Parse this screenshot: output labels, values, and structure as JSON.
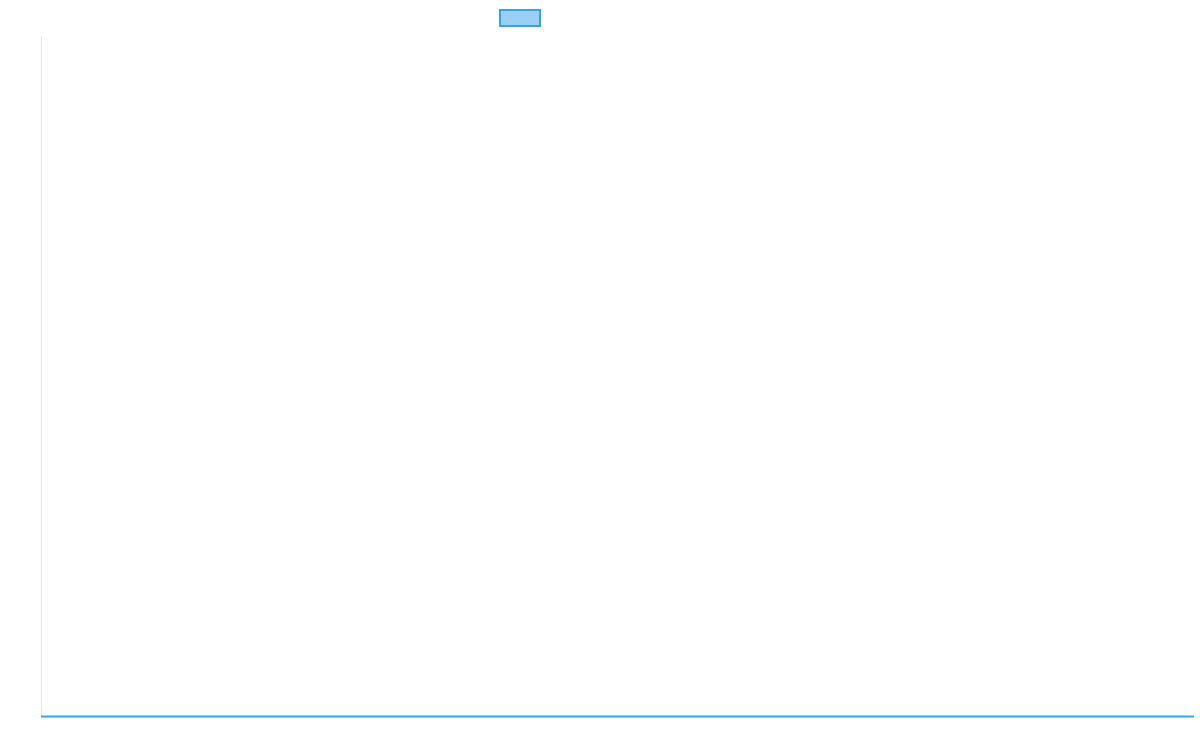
{
  "chart_data": {
    "type": "line",
    "title": "",
    "xlabel": "",
    "ylabel": "",
    "categories": [],
    "series": [
      {
        "label": "",
        "values": [],
        "color": "#36a2eb",
        "fill": "#9ad0f5"
      }
    ],
    "legend": "top",
    "grid": false,
    "colors": {
      "series_border": "#36a2eb",
      "series_fill": "#9ad0f5",
      "axis": "#e5e5e5"
    }
  }
}
